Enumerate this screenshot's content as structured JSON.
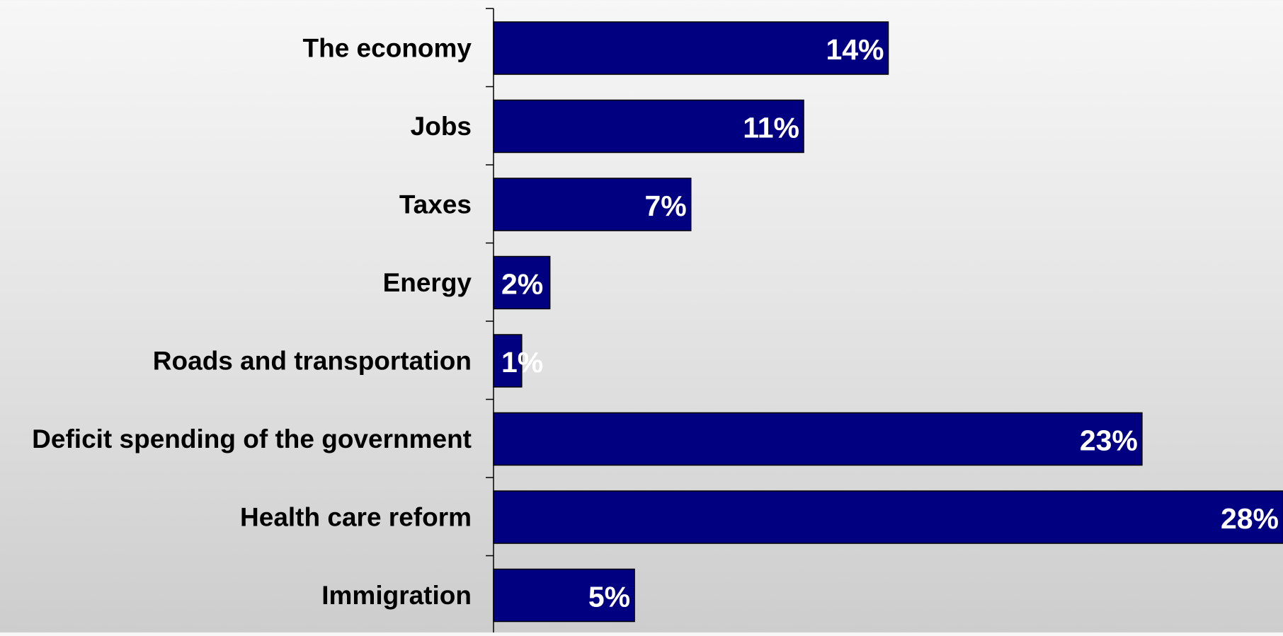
{
  "chart_data": {
    "type": "bar",
    "orientation": "horizontal",
    "categories": [
      "The economy",
      "Jobs",
      "Taxes",
      "Energy",
      "Roads and transportation",
      "Deficit spending of the government",
      "Health care reform",
      "Immigration"
    ],
    "values": [
      14,
      11,
      7,
      2,
      1,
      23,
      28,
      5
    ],
    "value_labels": [
      "14%",
      "11%",
      "7%",
      "2%",
      "1%",
      "23%",
      "28%",
      "5%"
    ],
    "xlim": [
      0,
      28
    ],
    "grid": false,
    "legend": "none",
    "colors": {
      "bar": "#000080",
      "bar_outline": "#000000",
      "axis": "#000000",
      "value_text": "#ffffff",
      "category_text": "#000000"
    }
  }
}
